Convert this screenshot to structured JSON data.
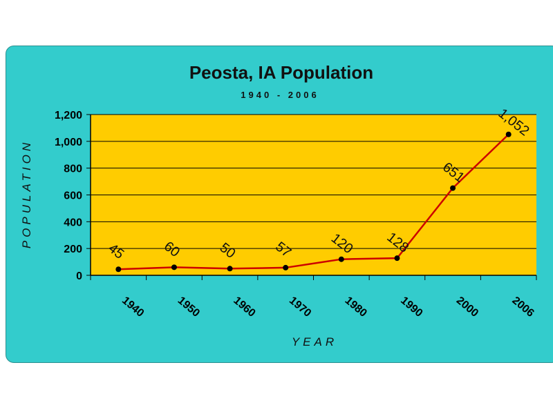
{
  "chart_data": {
    "type": "line",
    "title": "Peosta, IA Population",
    "subtitle": "1940 - 2006",
    "xlabel": "YEAR",
    "ylabel": "POPULATION",
    "categories": [
      "1940",
      "1950",
      "1960",
      "1970",
      "1980",
      "1990",
      "2000",
      "2006"
    ],
    "values": [
      45,
      60,
      50,
      57,
      120,
      128,
      651,
      1052
    ],
    "data_labels": [
      "45",
      "60",
      "50",
      "57",
      "120",
      "128",
      "651",
      "1,052"
    ],
    "ylim": [
      0,
      1200
    ],
    "yticks": [
      "0",
      "200",
      "400",
      "600",
      "800",
      "1,000",
      "1,200"
    ],
    "ytick_values": [
      0,
      200,
      400,
      600,
      800,
      1000,
      1200
    ],
    "grid": true,
    "colors": {
      "background": "#33cccc",
      "plot_area": "#ffcc00",
      "line": "#cc0000",
      "marker": "#000000",
      "grid": "#000000"
    }
  }
}
